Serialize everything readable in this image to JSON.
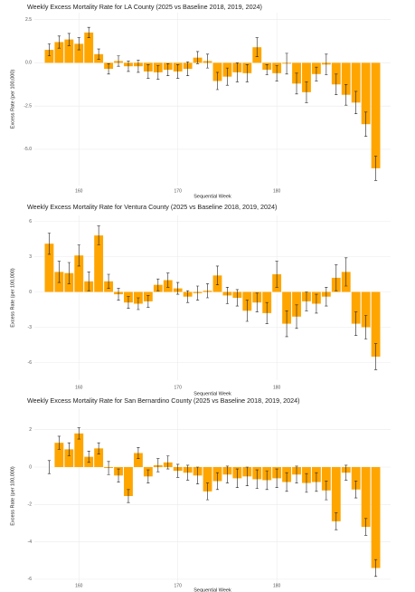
{
  "chart_data": [
    {
      "type": "bar",
      "title": "Weekly Excess Mortality Rate for LA County (2025 vs Baseline 2018, 2019, 2024)",
      "xlabel": "Sequential Week",
      "ylabel": "Excess Rate (per 100,000)",
      "x": [
        157,
        158,
        159,
        160,
        161,
        162,
        163,
        164,
        165,
        166,
        167,
        168,
        169,
        170,
        171,
        172,
        173,
        174,
        175,
        176,
        177,
        178,
        179,
        180,
        181,
        182,
        183,
        184,
        185,
        186,
        187,
        188,
        189,
        190
      ],
      "values": [
        0.75,
        1.2,
        1.35,
        1.1,
        1.75,
        0.5,
        -0.35,
        0.1,
        -0.2,
        -0.2,
        -0.5,
        -0.55,
        -0.4,
        -0.5,
        -0.35,
        0.3,
        0.1,
        -1.05,
        -0.8,
        -0.55,
        -0.6,
        0.9,
        -0.4,
        -0.6,
        -0.05,
        -1.2,
        -1.7,
        -0.65,
        -0.1,
        -1.25,
        -1.85,
        -2.3,
        -3.55,
        -6.1
      ],
      "errors": [
        0.35,
        0.35,
        0.35,
        0.35,
        0.3,
        0.3,
        0.3,
        0.3,
        0.3,
        0.35,
        0.4,
        0.4,
        0.35,
        0.4,
        0.4,
        0.35,
        0.4,
        0.5,
        0.5,
        0.55,
        0.5,
        0.55,
        0.3,
        0.45,
        0.6,
        0.6,
        0.6,
        0.4,
        0.6,
        0.6,
        0.6,
        0.65,
        0.7,
        0.7
      ],
      "color": "#FFA500",
      "xlim": [
        155.5,
        191.5
      ],
      "xticks": [
        160,
        170,
        180
      ],
      "ylim": [
        -7.1,
        2.9
      ],
      "yticks": [
        {
          "value": -5,
          "label": "-5.0"
        },
        -2.5,
        {
          "value": 0,
          "label": "0.0"
        },
        2.5
      ],
      "grid": true
    },
    {
      "type": "bar",
      "title": "Weekly Excess Mortality Rate for Ventura County (2025 vs Baseline 2018, 2019, 2024)",
      "xlabel": "Sequential Week",
      "ylabel": "Excess Rate (per 100,000)",
      "x": [
        157,
        158,
        159,
        160,
        161,
        162,
        163,
        164,
        165,
        166,
        167,
        168,
        169,
        170,
        171,
        172,
        173,
        174,
        175,
        176,
        177,
        178,
        179,
        180,
        181,
        182,
        183,
        184,
        185,
        186,
        187,
        188,
        189,
        190
      ],
      "values": [
        4.1,
        1.7,
        1.6,
        3.1,
        0.9,
        4.8,
        0.9,
        -0.2,
        -0.9,
        -1.0,
        -0.8,
        0.6,
        1.0,
        0.3,
        -0.4,
        -0.1,
        0.1,
        1.4,
        -0.3,
        -0.5,
        -1.6,
        -0.9,
        -1.8,
        1.5,
        -2.7,
        -2.1,
        -0.8,
        -1.0,
        -0.4,
        1.2,
        1.7,
        -2.7,
        -3.0,
        -5.5
      ],
      "errors": [
        0.9,
        0.9,
        0.9,
        0.9,
        0.8,
        0.8,
        0.6,
        0.5,
        0.5,
        0.5,
        0.5,
        0.5,
        0.6,
        0.5,
        0.5,
        0.6,
        0.6,
        0.8,
        0.7,
        0.7,
        0.9,
        0.8,
        0.9,
        1.1,
        1.1,
        1.0,
        0.8,
        0.8,
        0.8,
        1.1,
        1.2,
        1.0,
        1.0,
        1.1
      ],
      "color": "#FFA500",
      "xlim": [
        155.5,
        191.5
      ],
      "xticks": [
        160,
        170,
        180
      ],
      "ylim": [
        -7.5,
        6.5
      ],
      "yticks": [
        -6,
        -3,
        0,
        3,
        6
      ],
      "grid": true
    },
    {
      "type": "bar",
      "title": "Weekly Excess Mortality Rate for San Bernardino County (2025 vs Baseline 2018, 2019, 2024)",
      "xlabel": "Sequential Week",
      "ylabel": "Excess Rate (per 100,000)",
      "x": [
        157,
        158,
        159,
        160,
        161,
        162,
        163,
        164,
        165,
        166,
        167,
        168,
        169,
        170,
        171,
        172,
        173,
        174,
        175,
        176,
        177,
        178,
        179,
        180,
        181,
        182,
        183,
        184,
        185,
        186,
        187,
        188,
        189,
        190
      ],
      "values": [
        0.0,
        1.3,
        0.95,
        1.8,
        0.55,
        1.0,
        -0.05,
        -0.45,
        -1.55,
        0.75,
        -0.5,
        0.1,
        0.25,
        -0.2,
        -0.3,
        -0.45,
        -1.3,
        -0.75,
        -0.4,
        -0.6,
        -0.5,
        -0.65,
        -0.7,
        -0.6,
        -0.8,
        -0.4,
        -0.85,
        -0.8,
        -1.25,
        -2.9,
        -0.3,
        -1.2,
        -3.2,
        -5.4
      ],
      "errors": [
        0.35,
        0.35,
        0.35,
        0.3,
        0.3,
        0.3,
        0.35,
        0.35,
        0.35,
        0.3,
        0.35,
        0.35,
        0.35,
        0.35,
        0.4,
        0.45,
        0.45,
        0.45,
        0.45,
        0.5,
        0.5,
        0.5,
        0.5,
        0.5,
        0.5,
        0.45,
        0.5,
        0.5,
        0.5,
        0.45,
        0.4,
        0.45,
        0.45,
        0.45
      ],
      "color": "#FFA500",
      "xlim": [
        155.5,
        191.5
      ],
      "xticks": [
        160,
        170,
        180
      ],
      "ylim": [
        -6.2,
        3.1
      ],
      "yticks": [
        -6,
        -4,
        -2,
        0,
        2
      ],
      "grid": true
    }
  ]
}
